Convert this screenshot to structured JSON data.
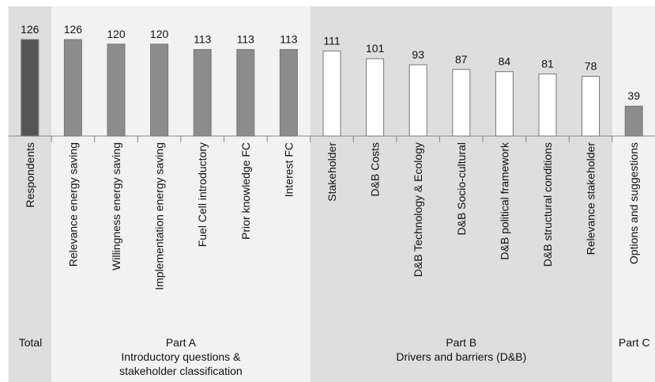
{
  "chart_data": {
    "type": "bar",
    "groups": [
      {
        "label": [
          "Total"
        ],
        "background": "#dedede",
        "bar_color": "#555555",
        "categories": [
          "Respondents"
        ],
        "values": [
          126
        ]
      },
      {
        "label": [
          "Part A",
          "Introductory questions &",
          "stakeholder classification"
        ],
        "background": "#f2f2f2",
        "bar_color": "#8c8c8c",
        "categories": [
          "Relevance energy saving",
          "Willingness energy saving",
          "Implementation energy saving",
          "Fuel Cell introductory",
          "Prior knowledge FC",
          "Interest FC"
        ],
        "values": [
          126,
          120,
          120,
          113,
          113,
          113
        ]
      },
      {
        "label": [
          "Part B",
          "Drivers and barriers (D&B)"
        ],
        "background": "#dedede",
        "bar_color": "#ffffff",
        "categories": [
          "Stakeholder",
          "D&B Costs",
          "D&B Technology & Ecology",
          "D&B Socio-cultural",
          "D&B political framework",
          "D&B structural conditions",
          "Relevance stakeholder"
        ],
        "values": [
          111,
          101,
          93,
          87,
          84,
          81,
          78
        ]
      },
      {
        "label": [
          "Part C"
        ],
        "background": "#f2f2f2",
        "bar_color": "#8c8c8c",
        "categories": [
          "Options and suggestions"
        ],
        "values": [
          39
        ]
      }
    ]
  }
}
